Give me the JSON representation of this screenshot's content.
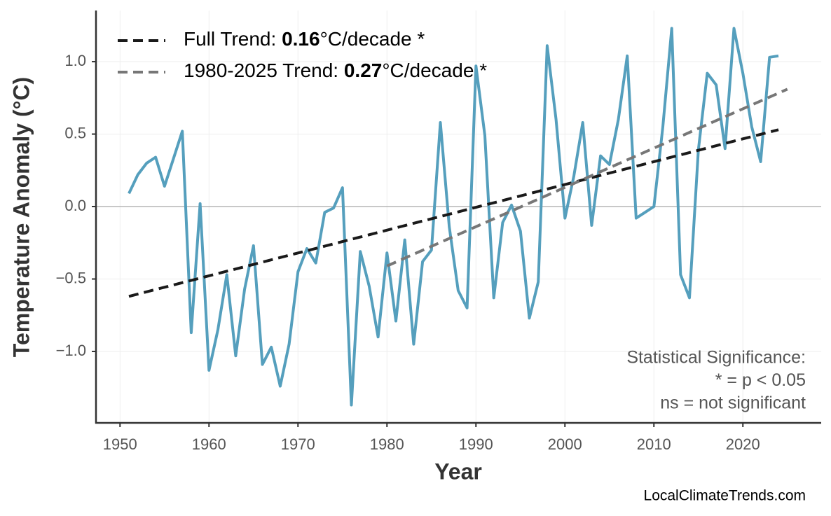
{
  "chart_data": {
    "type": "line",
    "x_label": "Year",
    "y_label": "Temperature Anomaly (°C)",
    "xlim": [
      1947.3,
      2028.8
    ],
    "ylim": [
      -1.493,
      1.353
    ],
    "xticks": [
      1950,
      1960,
      1970,
      1980,
      1990,
      2000,
      2010,
      2020
    ],
    "yticks": [
      {
        "value": -1,
        "label": "−1.0"
      },
      {
        "value": -0.5,
        "label": "−0.5"
      },
      {
        "value": 0,
        "label": "0.0"
      },
      0.5,
      {
        "value": 1,
        "label": "1.0"
      }
    ],
    "grid": true,
    "x": [
      1951,
      1952,
      1953,
      1954,
      1955,
      1956,
      1957,
      1958,
      1959,
      1960,
      1961,
      1962,
      1963,
      1964,
      1965,
      1966,
      1967,
      1968,
      1969,
      1970,
      1971,
      1972,
      1973,
      1974,
      1975,
      1976,
      1977,
      1978,
      1979,
      1980,
      1981,
      1982,
      1983,
      1984,
      1985,
      1986,
      1987,
      1988,
      1989,
      1990,
      1991,
      1992,
      1993,
      1994,
      1995,
      1996,
      1997,
      1998,
      1999,
      2000,
      2001,
      2002,
      2003,
      2004,
      2005,
      2006,
      2007,
      2008,
      2009,
      2010,
      2011,
      2012,
      2013,
      2014,
      2015,
      2016,
      2017,
      2018,
      2019,
      2020,
      2021,
      2022,
      2023,
      2024
    ],
    "series": [
      {
        "color": "#559fbd",
        "values": [
          0.09,
          0.22,
          0.3,
          0.34,
          0.14,
          0.33,
          0.52,
          -0.87,
          0.02,
          -1.13,
          -0.85,
          -0.47,
          -1.03,
          -0.57,
          -0.27,
          -1.09,
          -0.97,
          -1.24,
          -0.95,
          -0.45,
          -0.29,
          -0.39,
          -0.04,
          -0.01,
          0.13,
          -1.37,
          -0.31,
          -0.55,
          -0.9,
          -0.32,
          -0.79,
          -0.23,
          -0.95,
          -0.38,
          -0.3,
          0.58,
          -0.14,
          -0.58,
          -0.7,
          0.97,
          0.49,
          -0.63,
          -0.11,
          0.01,
          -0.17,
          -0.77,
          -0.52,
          1.11,
          0.6,
          -0.08,
          0.21,
          0.58,
          -0.13,
          0.35,
          0.29,
          0.6,
          1.04,
          -0.08,
          -0.04,
          0.0,
          0.55,
          1.23,
          -0.47,
          -0.63,
          0.39,
          0.92,
          0.84,
          0.4,
          1.23,
          0.92,
          0.55,
          0.31,
          1.03,
          1.04
        ]
      },
      {
        "name": {
          "prefix": "Full Trend:",
          "slope": 0.16,
          "unit": "°C/decade",
          "significance": "*"
        },
        "color": "#1a1a1a",
        "dashed": true,
        "x": [
          1951,
          2024
        ],
        "values": [
          -0.62,
          0.53
        ]
      },
      {
        "name": {
          "prefix": "1980-2025 Trend:",
          "slope": 0.27,
          "unit": "°C/decade",
          "significance": "*"
        },
        "color": "#777777",
        "dashed": true,
        "x": [
          1980,
          2025
        ],
        "values": [
          -0.41,
          0.81
        ]
      }
    ],
    "annotations": [
      "Statistical Significance:",
      "* = p < 0.05",
      "ns = not significant"
    ],
    "watermark": "LocalClimateTrends.com"
  }
}
